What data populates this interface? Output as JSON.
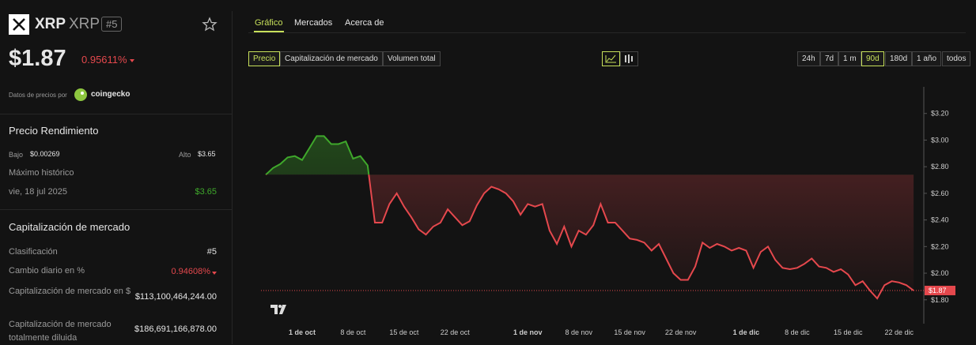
{
  "header": {
    "symbol": "XRP",
    "name": "XRP",
    "rank": "#5"
  },
  "price": {
    "value": "$1.87",
    "change": "0.95611%"
  },
  "source": {
    "label": "Datos de precios por",
    "provider": "coingecko"
  },
  "performance": {
    "title": "Precio Rendimiento",
    "low_label": "Bajo",
    "low": "$0.00269",
    "high_label": "Alto",
    "high": "$3.65",
    "ath_label": "Máximo histórico",
    "ath_date": "vie, 18 jul 2025",
    "ath": "$3.65"
  },
  "market": {
    "title": "Capitalización de mercado",
    "rows": [
      [
        "Clasificación",
        "#5"
      ],
      [
        "Cambio diario en %",
        "0.94608%"
      ],
      [
        "Capitalización de mercado en $",
        "$113,100,464,244.00"
      ],
      [
        "Capitalización de mercado totalmente diluida",
        "$186,691,166,878.00"
      ]
    ]
  },
  "tabs": [
    "Gráfico",
    "Mercados",
    "Acerca de"
  ],
  "metrics": [
    "Precio",
    "Capitalización de mercado",
    "Volumen total"
  ],
  "ranges": [
    "24h",
    "7d",
    "1 m",
    "90d",
    "180d",
    "1 año",
    "todos"
  ],
  "chart": {
    "type": "line",
    "series": [
      {
        "name": "XRP",
        "color_up": "#3fa82b",
        "color_down": "#e5484d",
        "values": [
          2.74,
          2.79,
          2.82,
          2.87,
          2.88,
          2.85,
          2.94,
          3.03,
          3.03,
          2.97,
          2.97,
          2.99,
          2.86,
          2.88,
          2.81,
          2.38,
          2.38,
          2.52,
          2.6,
          2.5,
          2.42,
          2.33,
          2.29,
          2.35,
          2.38,
          2.48,
          2.42,
          2.36,
          2.39,
          2.51,
          2.6,
          2.65,
          2.63,
          2.6,
          2.54,
          2.44,
          2.52,
          2.5,
          2.52,
          2.32,
          2.22,
          2.35,
          2.2,
          2.32,
          2.29,
          2.36,
          2.52,
          2.38,
          2.38,
          2.32,
          2.26,
          2.25,
          2.23,
          2.17,
          2.22,
          2.11,
          2.0,
          1.95,
          1.95,
          2.05,
          2.23,
          2.19,
          2.22,
          2.2,
          2.17,
          2.19,
          2.17,
          2.04,
          2.16,
          2.2,
          2.1,
          2.04,
          2.03,
          2.04,
          2.07,
          2.11,
          2.05,
          2.04,
          2.01,
          2.03,
          1.99,
          1.91,
          1.94,
          1.87,
          1.81,
          1.91,
          1.94,
          1.93,
          1.91,
          1.87
        ]
      }
    ],
    "ylim": [
      1.68,
      3.4
    ],
    "yticks": [
      {
        "value": 3.2,
        "label": "$3.20"
      },
      {
        "value": 3.0,
        "label": "$3.00"
      },
      {
        "value": 2.8,
        "label": "$2.80"
      },
      {
        "value": 2.6,
        "label": "$2.60"
      },
      {
        "value": 2.4,
        "label": "$2.40"
      },
      {
        "value": 2.2,
        "label": "$2.20"
      },
      {
        "value": 2.0,
        "label": "$2.00"
      },
      {
        "value": 1.8,
        "label": "$1.80"
      }
    ],
    "xlim": [
      -0.65,
      90.4
    ],
    "xticks": [
      {
        "value": 5,
        "label": "1 de oct"
      },
      {
        "value": 12,
        "label": "8 de oct"
      },
      {
        "value": 19,
        "label": "15 de oct"
      },
      {
        "value": 26,
        "label": "22 de oct"
      },
      {
        "value": 36,
        "label": "1 de nov"
      },
      {
        "value": 43,
        "label": "8 de nov"
      },
      {
        "value": 50,
        "label": "15 de nov"
      },
      {
        "value": 57,
        "label": "22 de nov"
      },
      {
        "value": 66,
        "label": "1 de dic"
      },
      {
        "value": 73,
        "label": "8 de dic"
      },
      {
        "value": 80,
        "label": "15 de dic"
      },
      {
        "value": 87,
        "label": "22 de dic"
      }
    ],
    "current_price": {
      "value": 1.87,
      "label": "$1.87"
    }
  }
}
